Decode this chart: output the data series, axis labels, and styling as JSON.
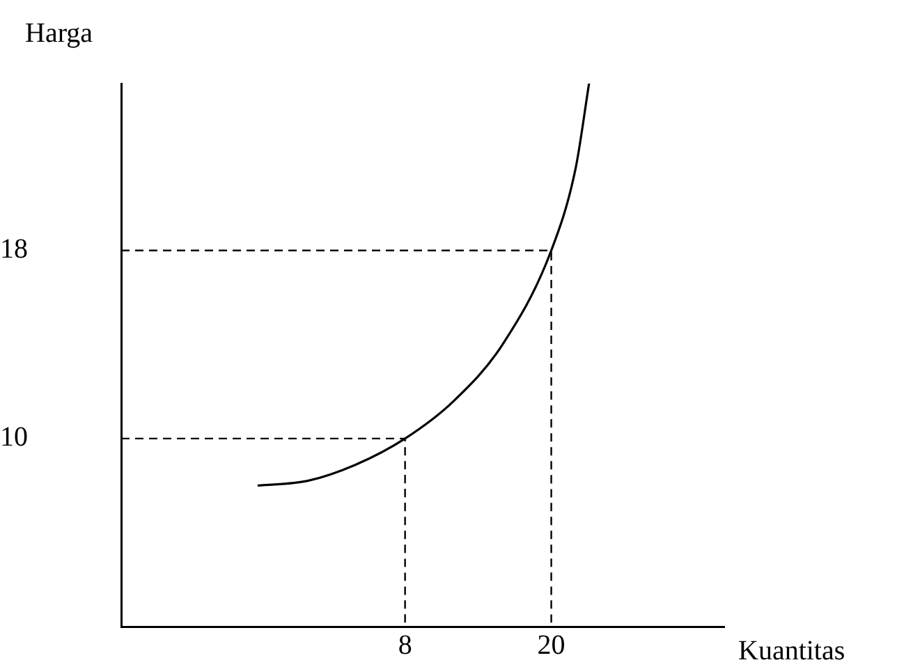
{
  "chart_data": {
    "type": "line",
    "xlabel": "Kuantitas",
    "ylabel": "Harga",
    "xlim": [
      -15.3,
      34.2
    ],
    "ylim": [
      2,
      25.1
    ],
    "xticks": [
      8,
      20
    ],
    "yticks": [
      10,
      18
    ],
    "grid": false,
    "legend": false,
    "marker": "none",
    "series": [
      {
        "color": "#000000",
        "line_style": "solid",
        "x": [
          -4.1,
          0,
          4,
          8,
          12,
          16,
          20,
          22,
          23.1
        ],
        "values": [
          8.0,
          8.2,
          8.9,
          10,
          11.6,
          14,
          18,
          21.5,
          25.1
        ]
      },
      {
        "color": "#000000",
        "line_style": "dashed",
        "x": [
          -15.3,
          8,
          8
        ],
        "values": [
          10,
          10,
          2
        ]
      },
      {
        "color": "#000000",
        "line_style": "dashed",
        "x": [
          -15.3,
          20,
          20
        ],
        "values": [
          18,
          18,
          2
        ]
      }
    ]
  }
}
